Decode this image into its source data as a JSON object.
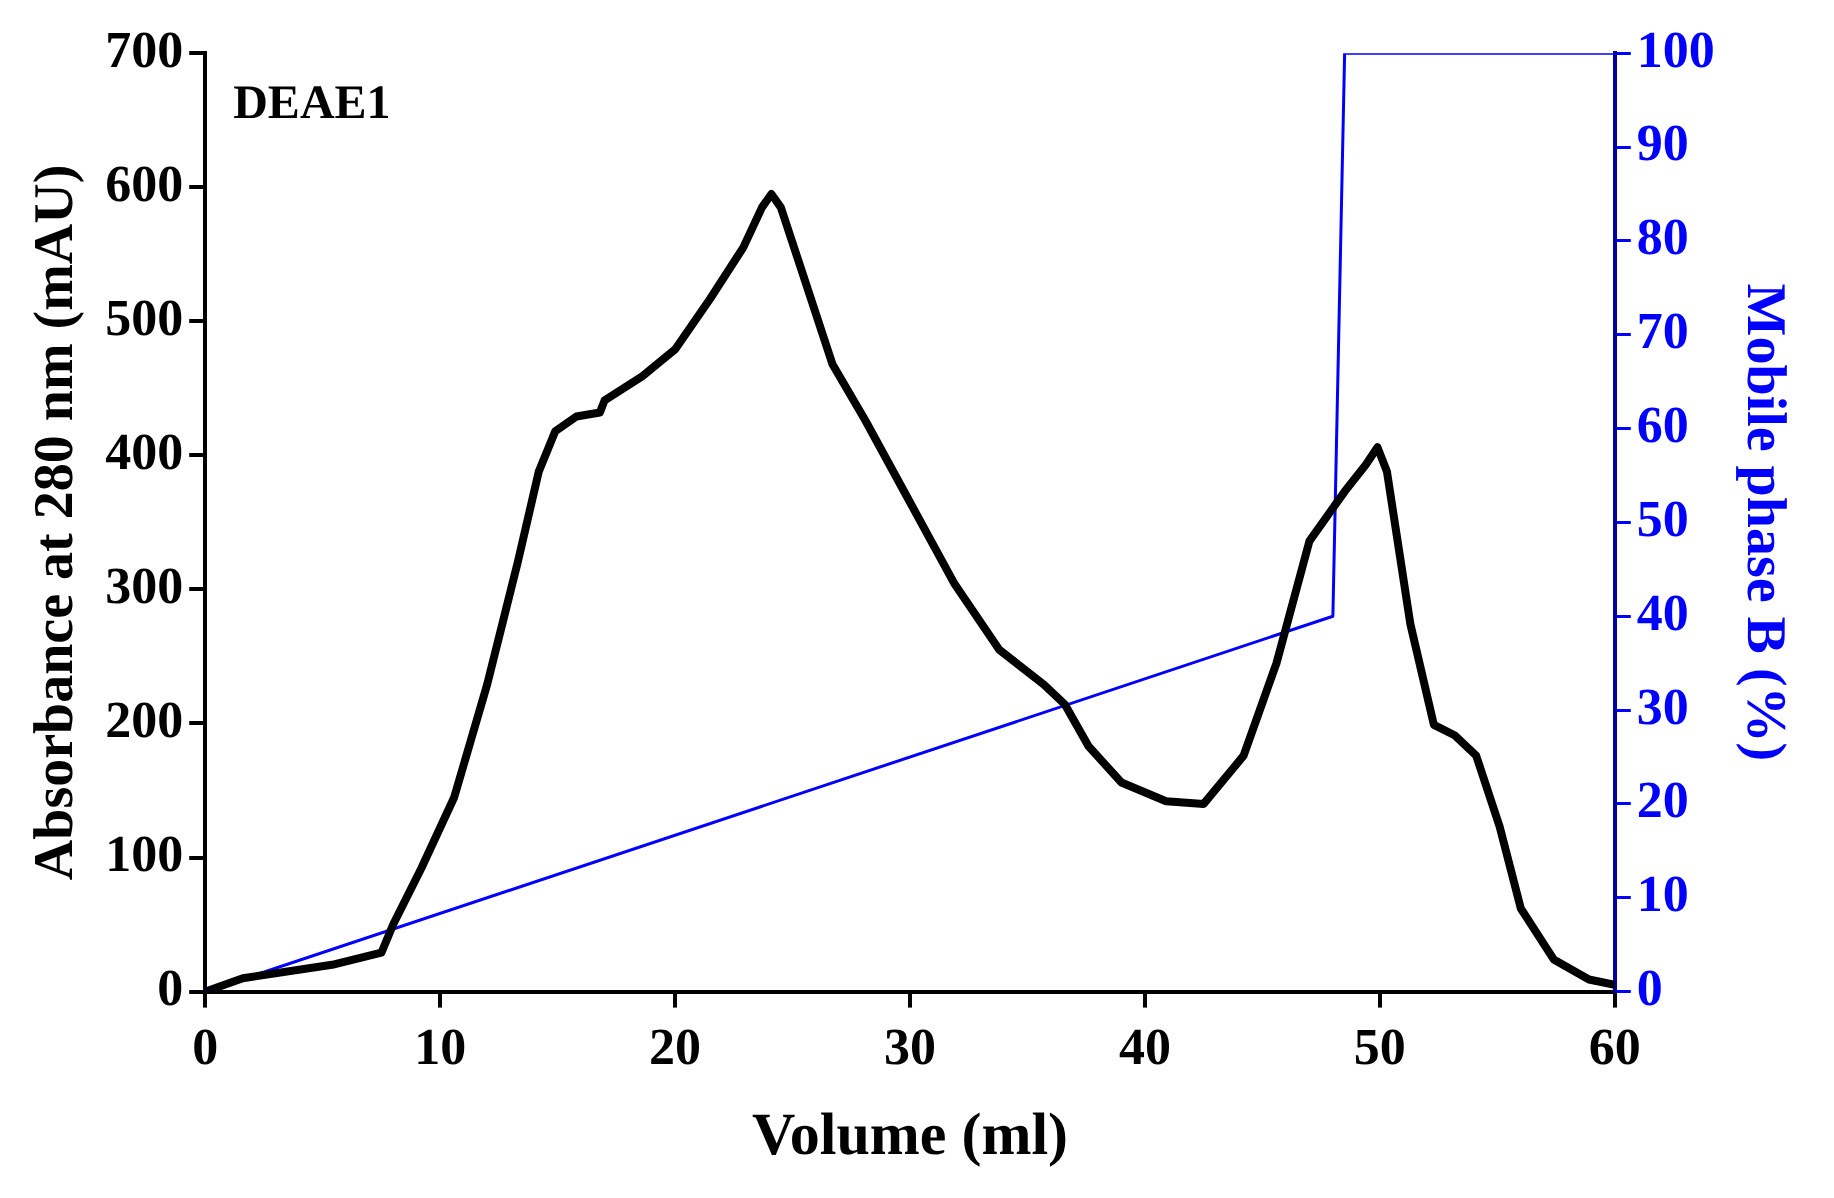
{
  "chart_data": {
    "type": "line",
    "xlabel": "Volume (ml)",
    "ylabel": "Absorbance at 280 nm (mAU)",
    "y2label": "Mobile phase B (%)",
    "annotations": [
      "DEAE1"
    ],
    "xlim": [
      0,
      60
    ],
    "xticks": [
      0,
      10,
      20,
      30,
      40,
      50,
      60
    ],
    "ylim": [
      0,
      700
    ],
    "yticks": [
      0,
      100,
      200,
      300,
      400,
      500,
      600,
      700
    ],
    "y2lim": [
      0,
      100
    ],
    "y2ticks": [
      0,
      10,
      20,
      30,
      40,
      50,
      60,
      70,
      80,
      90,
      100
    ],
    "grid": false,
    "legend": false,
    "marker": "none",
    "line_style": "solid",
    "series": [
      {
        "color": "#000000",
        "x": [
          0,
          1.6,
          5.4,
          7.5,
          8.0,
          9.2,
          10.6,
          12.0,
          13.3,
          14.2,
          14.9,
          15.8,
          16.8,
          17.0,
          18.6,
          20.0,
          21.5,
          22.9,
          23.7,
          24.1,
          24.5,
          25.5,
          26.7,
          28.1,
          30.0,
          31.9,
          33.8,
          35.7,
          36.6,
          37.6,
          39.0,
          40.9,
          42.5,
          44.2,
          45.6,
          47.0,
          48.5,
          49.4,
          49.9,
          50.3,
          51.3,
          52.3,
          53.2,
          54.1,
          55.1,
          56.0,
          57.4,
          58.9,
          60
        ],
        "values": [
          0,
          10,
          20,
          29,
          50,
          92,
          145,
          229,
          320,
          388,
          418,
          429,
          432,
          441,
          459,
          479,
          517,
          555,
          585,
          595,
          585,
          532,
          468,
          426,
          365,
          304,
          255,
          229,
          214,
          183,
          156,
          142,
          140,
          176,
          245,
          336,
          373,
          393,
          406,
          388,
          274,
          199,
          191,
          176,
          123,
          62,
          24,
          9,
          5
        ]
      },
      {
        "color": "#0000ff",
        "axis": "y2",
        "x": [
          0,
          48,
          48.5,
          60
        ],
        "values": [
          0,
          40,
          100,
          100
        ]
      }
    ]
  }
}
